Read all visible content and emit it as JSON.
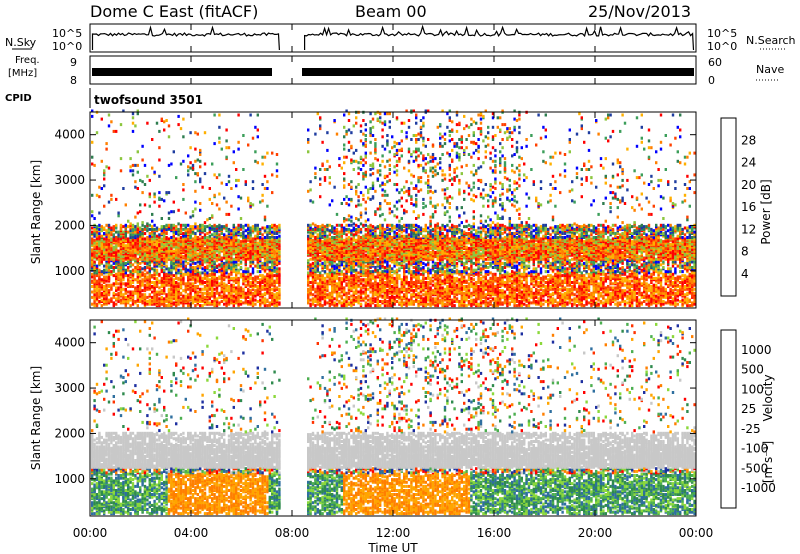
{
  "header": {
    "station": "Dome C East (fitACF)",
    "beam": "Beam 00",
    "date": "25/Nov/2013"
  },
  "left_labels": {
    "nsky": "N.Sky",
    "freq": "Freq.",
    "freq_unit": "[MHz]",
    "cpid": "CPID"
  },
  "right_labels": {
    "nsearch": "N.Search",
    "nave": "Nave"
  },
  "noise_panel": {
    "tick_top": "10^5",
    "tick_bottom": "10^0"
  },
  "freq_panel": {
    "tick_top": "9",
    "tick_bottom": "8",
    "nave_top": "60",
    "nave_bottom": "0"
  },
  "cpid_panel": {
    "label": "twofsound 3501"
  },
  "power_panel": {
    "ylabel": "Slant Range [km]",
    "yticks": [
      "4000",
      "3000",
      "2000",
      "1000"
    ],
    "cbar_label": "Power [dB]",
    "cbar_ticks": [
      "28",
      "24",
      "20",
      "16",
      "12",
      "8",
      "4"
    ]
  },
  "velocity_panel": {
    "ylabel": "Slant Range [km]",
    "yticks": [
      "4000",
      "3000",
      "2000",
      "1000"
    ],
    "cbar_label": "Velocity",
    "cbar_unit": "[m s⁻¹]",
    "cbar_ticks": [
      "1000",
      "500",
      "100",
      "25",
      "-25",
      "-100",
      "-500",
      "-1000"
    ]
  },
  "xaxis": {
    "label": "Time UT",
    "ticks": [
      "00:00",
      "04:00",
      "08:00",
      "12:00",
      "16:00",
      "20:00",
      "00:00"
    ]
  },
  "colors": {
    "power_scale": [
      "#0000ff",
      "#1e3ca0",
      "#2e7d4f",
      "#3c9e5a",
      "#8cc63f",
      "#ffb000",
      "#ff8000",
      "#ff4000",
      "#ff0000"
    ],
    "velocity_scale": [
      "#1d2fa0",
      "#2f6f9f",
      "#2f8a4e",
      "#4caf50",
      "#8bd83b",
      "#c8c8c8",
      "#ffa500",
      "#ff7f00",
      "#ff3300",
      "#ff0000"
    ]
  },
  "chart_data": [
    {
      "type": "heatmap",
      "title": "Power",
      "x_range_hours": [
        0,
        24
      ],
      "data_gap_hours": [
        7.5,
        8.5
      ],
      "ylim_km": [
        180,
        4500
      ],
      "band_km": [
        [
          300,
          2000
        ],
        [
          2300,
          3500
        ],
        [
          3700,
          4500
        ]
      ],
      "color_scale": [
        4,
        28
      ]
    },
    {
      "type": "heatmap",
      "title": "Velocity",
      "x_range_hours": [
        0,
        24
      ],
      "data_gap_hours": [
        7.5,
        8.5
      ],
      "ylim_km": [
        180,
        4500
      ],
      "band_km": [
        [
          300,
          2000
        ],
        [
          2300,
          3500
        ],
        [
          3700,
          4500
        ]
      ],
      "color_scale": [
        -1000,
        1000
      ]
    }
  ]
}
